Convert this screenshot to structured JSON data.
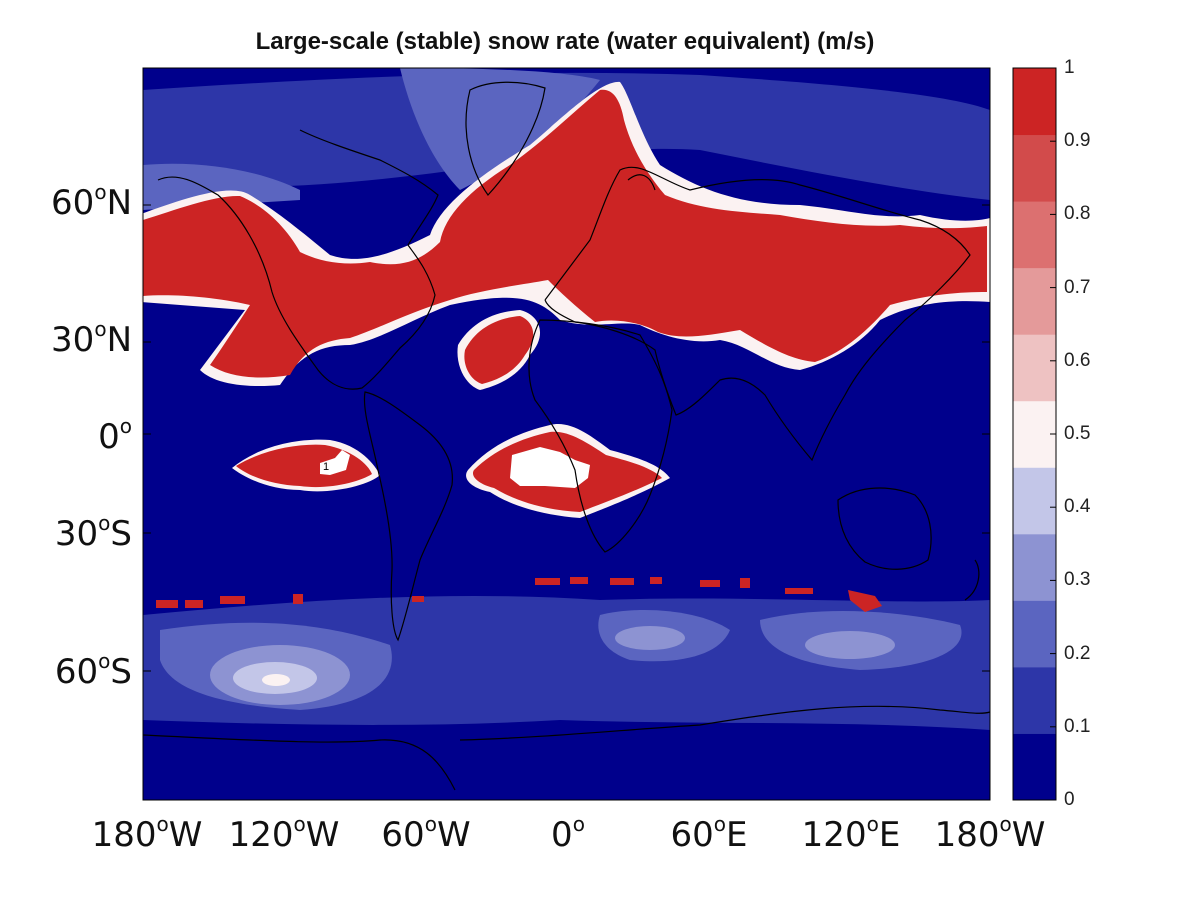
{
  "title": "Large-scale (stable) snow rate (water equivalent) (m/s)",
  "map": {
    "background_color": "#00008c",
    "lat_ticks": [
      {
        "deg": "60",
        "sym": "o",
        "dir": "N"
      },
      {
        "deg": "30",
        "sym": "o",
        "dir": "N"
      },
      {
        "deg": "0",
        "sym": "o",
        "dir": ""
      },
      {
        "deg": "30",
        "sym": "o",
        "dir": "S"
      },
      {
        "deg": "60",
        "sym": "o",
        "dir": "S"
      }
    ],
    "lon_ticks": [
      {
        "deg": "180",
        "sym": "o",
        "dir": "W"
      },
      {
        "deg": "120",
        "sym": "o",
        "dir": "W"
      },
      {
        "deg": "60",
        "sym": "o",
        "dir": "W"
      },
      {
        "deg": "0",
        "sym": "o",
        "dir": ""
      },
      {
        "deg": "60",
        "sym": "o",
        "dir": "E"
      },
      {
        "deg": "120",
        "sym": "o",
        "dir": "E"
      },
      {
        "deg": "180",
        "sym": "o",
        "dir": "W"
      }
    ],
    "contour_label": "1"
  },
  "colorbar": {
    "ticks": [
      "0",
      "0.1",
      "0.2",
      "0.3",
      "0.4",
      "0.5",
      "0.6",
      "0.7",
      "0.8",
      "0.9",
      "1"
    ],
    "colors": [
      "#00008c",
      "#2d36a8",
      "#5b65c0",
      "#8d93d2",
      "#c3c6e8",
      "#fbf2f2",
      "#eec2c2",
      "#e49a9a",
      "#dc7070",
      "#d24b4b",
      "#cc2424"
    ]
  }
}
